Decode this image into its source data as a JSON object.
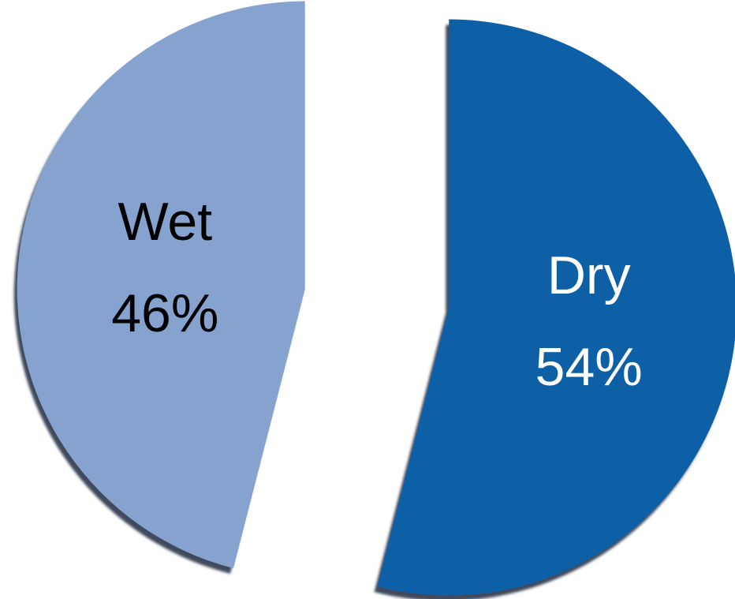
{
  "chart_data": {
    "type": "pie",
    "categories": [
      "Dry",
      "Wet"
    ],
    "values": [
      54,
      46
    ],
    "value_labels": [
      "54%",
      "46%"
    ],
    "colors": [
      "#0a5fa6",
      "#86a3d0"
    ]
  }
}
